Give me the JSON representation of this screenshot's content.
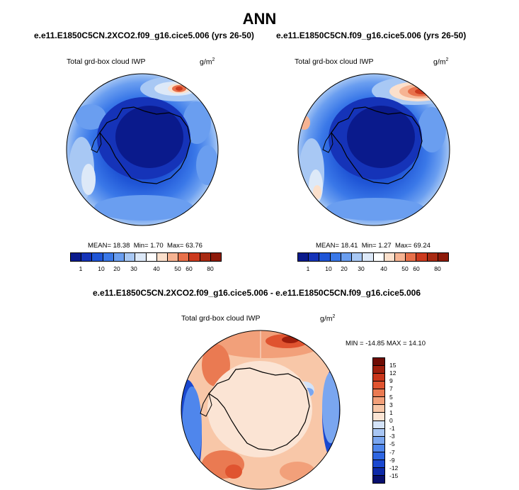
{
  "page_title": "ANN",
  "colors": {
    "abs_palette": [
      "#0a1a8c",
      "#1533b8",
      "#1f55d6",
      "#3a78e8",
      "#6a9ef0",
      "#a8c8f4",
      "#dde9f8",
      "#fbe0cc",
      "#f6b392",
      "#e8704a",
      "#cc3a1e",
      "#8e1a0a"
    ],
    "diff_palette": [
      "#08106e",
      "#0d2aa8",
      "#1a48d0",
      "#2e66e2",
      "#4f86ec",
      "#7aa6f0",
      "#a8c6f4",
      "#d4e3f8",
      "#fbe4d4",
      "#f8c7a8",
      "#f2a07a",
      "#ea7a52",
      "#e05430",
      "#c9361a",
      "#9e1e0c",
      "#6e0c04"
    ]
  },
  "panels": [
    {
      "case": "e.e11.E1850C5CN.2XCO2.f09_g16.cice5.006 (yrs 26-50)",
      "variable": "Total grd-box cloud IWP",
      "units": "g/m",
      "units_exp": "2",
      "mean_label": "MEAN= 18.38",
      "min_label": "Min=  1.70",
      "max_label": "Max=  63.76"
    },
    {
      "case": "e.e11.E1850C5CN.f09_g16.cice5.006 (yrs 26-50)",
      "variable": "Total grd-box cloud IWP",
      "units": "g/m",
      "units_exp": "2",
      "mean_label": "MEAN= 18.41",
      "min_label": "Min=  1.27",
      "max_label": "Max=  69.24"
    }
  ],
  "diff_panel": {
    "case": "e.e11.E1850C5CN.2XCO2.f09_g16.cice5.006 - e.e11.E1850C5CN.f09_g16.cice5.006",
    "variable": "Total grd-box cloud IWP",
    "units": "g/m",
    "units_exp": "2",
    "minmax_label": "MIN = -14.85 MAX =  14.10"
  },
  "chart_data": [
    {
      "type": "heatmap",
      "title": "e.e11.E1850C5CN.2XCO2.f09_g16.cice5.006 (yrs 26-50)",
      "projection": "south polar stereographic",
      "variable": "Total grd-box cloud IWP",
      "units": "g/m2",
      "mean": 18.38,
      "min": 1.7,
      "max": 63.76,
      "contour_levels": [
        1,
        5,
        10,
        15,
        20,
        25,
        30,
        35,
        40,
        45,
        50,
        60,
        70,
        80
      ],
      "colorbar_tick_labels": [
        "1",
        "10",
        "20",
        "30",
        "40",
        "50",
        "60",
        "80"
      ]
    },
    {
      "type": "heatmap",
      "title": "e.e11.E1850C5CN.f09_g16.cice5.006 (yrs 26-50)",
      "projection": "south polar stereographic",
      "variable": "Total grd-box cloud IWP",
      "units": "g/m2",
      "mean": 18.41,
      "min": 1.27,
      "max": 69.24,
      "contour_levels": [
        1,
        5,
        10,
        15,
        20,
        25,
        30,
        35,
        40,
        45,
        50,
        60,
        70,
        80
      ],
      "colorbar_tick_labels": [
        "1",
        "10",
        "20",
        "30",
        "40",
        "50",
        "60",
        "80"
      ]
    },
    {
      "type": "heatmap",
      "title": "e.e11.E1850C5CN.2XCO2.f09_g16.cice5.006 - e.e11.E1850C5CN.f09_g16.cice5.006",
      "projection": "south polar stereographic",
      "variable": "Total grd-box cloud IWP",
      "units": "g/m2",
      "min": -14.85,
      "max": 14.1,
      "contour_levels": [
        -15,
        -12,
        -9,
        -7,
        -5,
        -3,
        -1,
        0,
        1,
        3,
        5,
        7,
        9,
        12,
        15
      ],
      "colorbar_tick_labels": [
        "15",
        "12",
        "9",
        "7",
        "5",
        "3",
        "1",
        "0",
        "-1",
        "-3",
        "-5",
        "-7",
        "-9",
        "-12",
        "-15"
      ]
    }
  ]
}
